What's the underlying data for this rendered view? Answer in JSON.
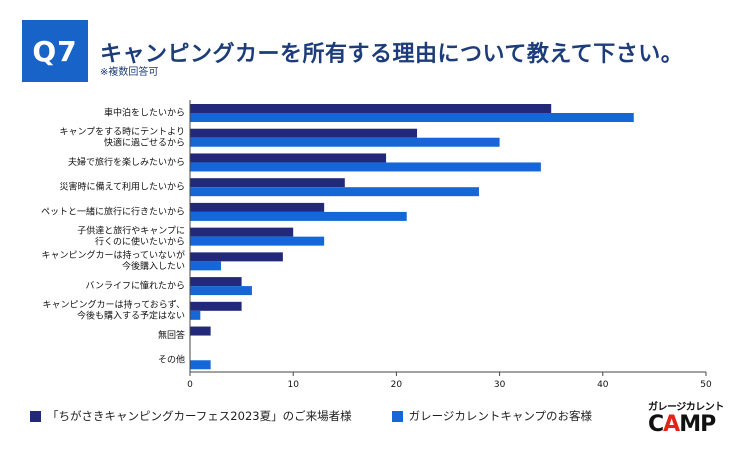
{
  "header": {
    "badge": "Q7",
    "title": "キャンピングカーを所有する理由について教えて下さい。",
    "subtitle": "※複数回答可"
  },
  "legend": {
    "series1": "「ちがさきキャンピングカーフェス2023夏」のご来場者様",
    "series2": "ガレージカレントキャンプのお客様"
  },
  "logo": {
    "top": "ガレージカレント",
    "main_pre": "C",
    "main_a": "A",
    "main_post": "MP"
  },
  "colors": {
    "series1": "#23297a",
    "series2": "#1567d8",
    "axis": "#444444",
    "badge": "#1763c7",
    "title": "#1d3c7a"
  },
  "chart_data": {
    "type": "bar",
    "orientation": "horizontal",
    "categories": [
      [
        "車中泊をしたいから"
      ],
      [
        "キャンプをする時にテントより",
        "快適に過ごせるから"
      ],
      [
        "夫婦で旅行を楽しみたいから"
      ],
      [
        "災害時に備えて利用したいから"
      ],
      [
        "ペットと一緒に旅行に行きたいから"
      ],
      [
        "子供達と旅行やキャンプに",
        "行くのに使いたいから"
      ],
      [
        "キャンピングカーは持っていないが",
        "今後購入したい"
      ],
      [
        "バンライフに憧れたから"
      ],
      [
        "キャンピングカーは持っておらず、",
        "今後も購入する予定はない"
      ],
      [
        "無回答"
      ],
      [
        "その他"
      ]
    ],
    "series": [
      {
        "name": "「ちがさきキャンピングカーフェス2023夏」のご来場者様",
        "values": [
          35,
          22,
          19,
          15,
          13,
          10,
          9,
          5,
          5,
          2,
          0
        ]
      },
      {
        "name": "ガレージカレントキャンプのお客様",
        "values": [
          43,
          30,
          34,
          28,
          21,
          13,
          3,
          6,
          1,
          0,
          2
        ]
      }
    ],
    "xlim": [
      0,
      50
    ],
    "xticks": [
      0,
      10,
      20,
      30,
      40,
      50
    ],
    "title": "キャンピングカーを所有する理由について教えて下さい。",
    "xlabel": "",
    "ylabel": "",
    "grid": false,
    "legend_position": "bottom"
  }
}
